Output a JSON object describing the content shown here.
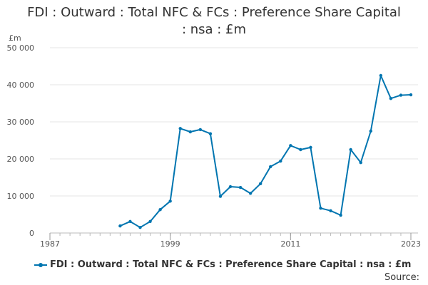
{
  "chart_data": {
    "type": "line",
    "title": "FDI : Outward : Total NFC & FCs : Preference Share Capital : nsa : £m",
    "title_lines": [
      "FDI : Outward : Total NFC & FCs : Preference Share Capital",
      ": nsa : £m"
    ],
    "ylabel": "£m",
    "xlabel": "",
    "ylim": [
      0,
      50000
    ],
    "xlim": [
      1987,
      2023
    ],
    "y_ticks": [
      0,
      10000,
      20000,
      30000,
      40000,
      50000
    ],
    "y_tick_labels": [
      "0",
      "10 000",
      "20 000",
      "30 000",
      "40 000",
      "50 000"
    ],
    "x_ticks": [
      1987,
      1999,
      2011,
      2023
    ],
    "x_tick_labels": [
      "1987",
      "1999",
      "2011",
      "2023"
    ],
    "grid": true,
    "legend_position": "bottom-left",
    "series": [
      {
        "name": "FDI : Outward : Total NFC & FCs : Preference Share Capital : nsa : £m",
        "color": "#0075b0",
        "x": [
          1994,
          1995,
          1996,
          1997,
          1998,
          1999,
          2000,
          2001,
          2002,
          2003,
          2004,
          2005,
          2006,
          2007,
          2008,
          2009,
          2010,
          2011,
          2012,
          2013,
          2014,
          2015,
          2016,
          2017,
          2018,
          2019,
          2020,
          2021,
          2022,
          2023
        ],
        "values": [
          1900,
          3100,
          1500,
          3100,
          6300,
          8600,
          28200,
          27300,
          27900,
          26800,
          9900,
          12500,
          12300,
          10700,
          13300,
          17900,
          19400,
          23600,
          22500,
          23100,
          6700,
          6000,
          4800,
          22500,
          19000,
          27500,
          42500,
          36300,
          37200,
          37300
        ]
      }
    ]
  },
  "source_label": "Source:"
}
